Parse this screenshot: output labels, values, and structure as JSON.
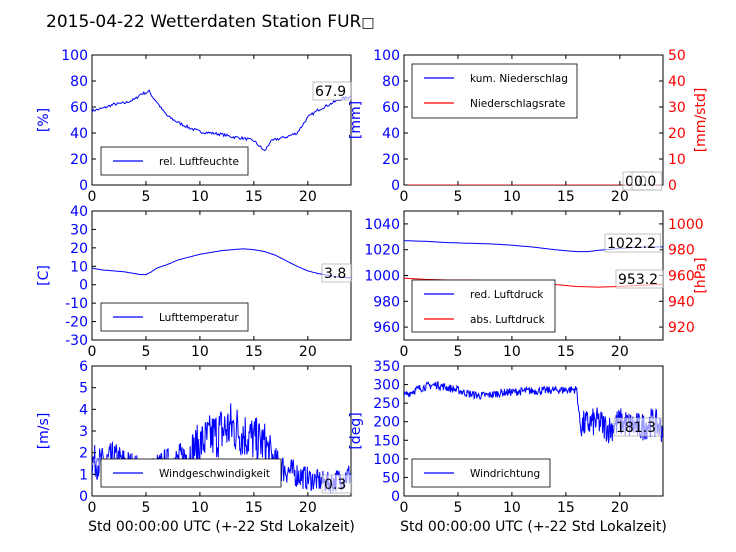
{
  "figure": {
    "title": "2015-04-22 Wetterdaten Station FUR",
    "title_glyph": "□"
  },
  "colors": {
    "primary": "#0000ff",
    "secondary": "#ff0000",
    "light_blue": "#7777ff",
    "axis": "#000000"
  },
  "chart_data": [
    {
      "id": "humidity",
      "type": "line",
      "title": "",
      "xlabel": "",
      "ylabel": "[%]",
      "xlim": [
        0,
        24
      ],
      "ylim": [
        0,
        100
      ],
      "xticks": [
        0,
        5,
        10,
        15,
        20
      ],
      "yticks": [
        0,
        20,
        40,
        60,
        80,
        100
      ],
      "legend": {
        "position": "lower-left",
        "entries": [
          "rel. Luftfeuchte"
        ]
      },
      "annotation": "67.9",
      "series": [
        {
          "name": "rel. Luftfeuchte",
          "color": "#0000ff",
          "x": [
            0,
            1,
            2,
            3,
            4,
            4.5,
            5,
            5.3,
            5.6,
            6,
            6.5,
            7,
            8,
            9,
            10,
            11,
            12,
            13,
            14,
            15,
            15.5,
            16,
            16.5,
            17,
            18,
            19,
            20,
            21,
            22,
            23,
            24
          ],
          "y": [
            57,
            59,
            62,
            63,
            66,
            70,
            71,
            72,
            68,
            64,
            58,
            53,
            48,
            44,
            41,
            40,
            39,
            37,
            36,
            34,
            30,
            26,
            33,
            35,
            37,
            40,
            52,
            58,
            62,
            66,
            68
          ]
        }
      ]
    },
    {
      "id": "precip",
      "type": "line",
      "title": "",
      "xlabel": "",
      "ylabel": "[mm]",
      "ylabel_right": "[mm/std]",
      "xlim": [
        0,
        24
      ],
      "ylim": [
        0,
        100
      ],
      "ylim_right": [
        0,
        50
      ],
      "xticks": [
        0,
        5,
        10,
        15,
        20
      ],
      "yticks": [
        0,
        20,
        40,
        60,
        80,
        100
      ],
      "yticks_right": [
        0,
        10,
        20,
        30,
        40,
        50
      ],
      "legend": {
        "position": "top-left",
        "entries": [
          "kum. Niederschlag",
          "Niederschlagsrate"
        ]
      },
      "annotations": [
        "0.0",
        "0.0"
      ],
      "series": [
        {
          "name": "kum. Niederschlag",
          "color": "#0000ff",
          "x": [
            0,
            24
          ],
          "y": [
            0,
            0
          ]
        },
        {
          "name": "Niederschlagsrate",
          "color": "#ff0000",
          "x": [
            0,
            24
          ],
          "y": [
            0,
            0
          ]
        }
      ]
    },
    {
      "id": "temperature",
      "type": "line",
      "title": "",
      "xlabel": "",
      "ylabel": "[C]",
      "xlim": [
        0,
        24
      ],
      "ylim": [
        -30,
        40
      ],
      "xticks": [
        0,
        5,
        10,
        15,
        20
      ],
      "yticks": [
        -30,
        -20,
        -10,
        0,
        10,
        20,
        30,
        40
      ],
      "legend": {
        "position": "lower-left",
        "entries": [
          "Lufttemperatur"
        ]
      },
      "annotation": "3.8",
      "series": [
        {
          "name": "Lufttemperatur",
          "color": "#0000ff",
          "x": [
            0,
            1,
            2,
            3,
            4,
            4.5,
            5,
            5.5,
            6,
            7,
            8,
            9,
            10,
            11,
            12,
            13,
            14,
            15,
            16,
            17,
            18,
            19,
            20,
            21,
            22,
            23,
            24
          ],
          "y": [
            9,
            8,
            7.5,
            7,
            6,
            5.5,
            5.5,
            7,
            9,
            11,
            13.5,
            15,
            16.5,
            17.5,
            18.5,
            19,
            19.5,
            19,
            18,
            16,
            13,
            10,
            7.5,
            6,
            5,
            4,
            3.8
          ]
        }
      ]
    },
    {
      "id": "pressure",
      "type": "line",
      "title": "",
      "xlabel": "",
      "ylabel": "",
      "ylabel_right": "[hPa]",
      "xlim": [
        0,
        24
      ],
      "ylim": [
        950,
        1050
      ],
      "ylim_right": [
        910,
        1010
      ],
      "xticks": [
        0,
        5,
        10,
        15,
        20
      ],
      "yticks": [
        960,
        980,
        1000,
        1020,
        1040
      ],
      "yticks_right": [
        920,
        940,
        960,
        980,
        1000
      ],
      "legend": {
        "position": "lower-left",
        "entries": [
          "red. Luftdruck",
          "abs. Luftdruck"
        ]
      },
      "annotations": [
        "1022.2",
        "953.2"
      ],
      "series": [
        {
          "name": "red. Luftdruck",
          "color": "#0000ff",
          "x": [
            0,
            2,
            4,
            6,
            8,
            10,
            12,
            14,
            16,
            17,
            18,
            20,
            22,
            24
          ],
          "y": [
            1027,
            1026.5,
            1025.5,
            1025,
            1024.5,
            1023.5,
            1022,
            1020,
            1018.5,
            1018.5,
            1019.5,
            1021,
            1022,
            1022.2
          ]
        },
        {
          "name": "abs. Luftdruck",
          "color": "#ff0000",
          "x": [
            0,
            2,
            4,
            6,
            8,
            10,
            12,
            14,
            16,
            18,
            20,
            22,
            24
          ],
          "y": [
            958,
            957,
            956.5,
            956.5,
            956,
            955.5,
            954.5,
            953,
            951.5,
            951,
            951.5,
            952.5,
            953.2
          ]
        }
      ]
    },
    {
      "id": "wind_speed",
      "type": "line",
      "title": "",
      "xlabel": "Std 00:00:00 UTC (+-22 Std Lokalzeit)",
      "ylabel": "[m/s]",
      "xlim": [
        0,
        24
      ],
      "ylim": [
        0,
        6
      ],
      "xticks": [
        0,
        5,
        10,
        15,
        20
      ],
      "yticks": [
        0,
        1,
        2,
        3,
        4,
        5,
        6
      ],
      "legend": {
        "position": "lower-center",
        "entries": [
          "Windgeschwindigkeit"
        ]
      },
      "annotation": "0.3",
      "series": [
        {
          "name": "Windgeschwindigkeit",
          "color": "#0000ff",
          "x": [
            0,
            1,
            2,
            3,
            4,
            5,
            6,
            7,
            8,
            9,
            10,
            11,
            12,
            13,
            14,
            15,
            16,
            17,
            18,
            19,
            20,
            21,
            22,
            23,
            24
          ],
          "y": [
            1.6,
            1.5,
            1.7,
            1.5,
            1.3,
            1.0,
            1.3,
            1.5,
            1.6,
            2.0,
            2.4,
            2.7,
            3.0,
            3.2,
            2.9,
            2.6,
            2.4,
            1.5,
            1.2,
            1.0,
            0.8,
            0.7,
            0.6,
            0.8,
            1.0
          ],
          "noise": 0.9
        }
      ]
    },
    {
      "id": "wind_dir",
      "type": "line",
      "title": "",
      "xlabel": "Std 00:00:00 UTC (+-22 Std Lokalzeit)",
      "ylabel": "[deg]",
      "xlim": [
        0,
        24
      ],
      "ylim": [
        0,
        350
      ],
      "xticks": [
        0,
        5,
        10,
        15,
        20
      ],
      "yticks": [
        0,
        50,
        100,
        150,
        200,
        250,
        300,
        350
      ],
      "legend": {
        "position": "lower-left",
        "entries": [
          "Windrichtung"
        ]
      },
      "annotation": "181.3",
      "series": [
        {
          "name": "Windrichtung",
          "color": "#0000ff",
          "x": [
            0,
            1,
            2,
            3,
            4,
            5,
            6,
            7,
            8,
            9,
            10,
            11,
            12,
            13,
            14,
            15,
            16,
            16.3,
            16.5,
            17,
            18,
            19,
            20,
            21,
            22,
            23,
            24
          ],
          "y": [
            270,
            285,
            295,
            300,
            292,
            285,
            275,
            270,
            272,
            278,
            280,
            282,
            283,
            284,
            285,
            286,
            287,
            200,
            190,
            195,
            200,
            180,
            200,
            190,
            185,
            200,
            180
          ],
          "noise": 18
        }
      ]
    }
  ]
}
